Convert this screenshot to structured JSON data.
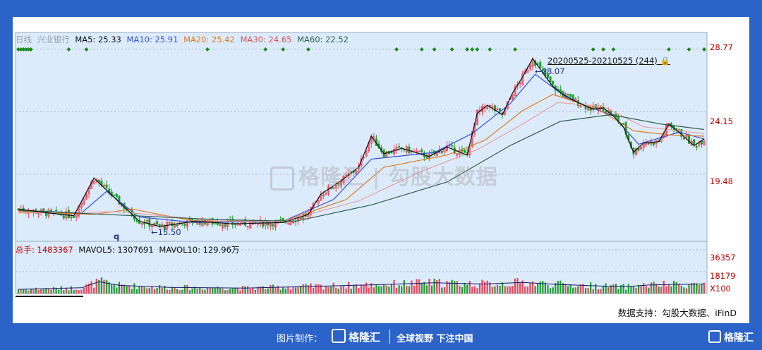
{
  "legend": {
    "period": "日线",
    "stock": "兴业银行",
    "ma5": "MA5: 25.33",
    "ma10": "MA10: 25.91",
    "ma20": "MA20: 25.42",
    "ma30": "MA30: 24.65",
    "ma60": "MA60: 22.52"
  },
  "volume_legend": {
    "total": "总手: 1483367",
    "mavol5": "MAVOL5: 1307691",
    "mavol10": "MAVOL10: 129.96万"
  },
  "axis": {
    "price_ticks": [
      "28.77",
      "24.15",
      "19.48"
    ],
    "volume_ticks": [
      "36357",
      "18179",
      "X100"
    ]
  },
  "annotations": {
    "range": "20200525-20210525 (244)",
    "peak": "28.07",
    "trough": "15.50",
    "q": "q"
  },
  "source": "数据支持：勾股大数据、iFinD",
  "watermark": "格隆汇 | 勾股大数据",
  "footer": {
    "credit": "图片制作：",
    "brand": "格隆汇",
    "slogan": "全球视野 下注中国",
    "corner": "格隆汇"
  },
  "colors": {
    "up": "#e8485a",
    "down": "#1f9e2e",
    "ma5": "#111111",
    "ma10": "#3a4ed8",
    "ma20": "#e07a1f",
    "ma30": "#e8a0a0",
    "ma60": "#2f5e4a",
    "signal": "#1a8a1a",
    "background": "#ffffff"
  },
  "chart_data": {
    "type": "line",
    "title": "兴业银行 日线",
    "ylim": [
      14.5,
      30.0
    ],
    "price_path": [
      [
        0,
        16.9
      ],
      [
        12,
        16.6
      ],
      [
        22,
        16.4
      ],
      [
        30,
        19.2
      ],
      [
        40,
        17.4
      ],
      [
        48,
        16.0
      ],
      [
        56,
        15.6
      ],
      [
        70,
        16.0
      ],
      [
        85,
        15.8
      ],
      [
        105,
        15.9
      ],
      [
        115,
        16.5
      ],
      [
        120,
        18.0
      ],
      [
        128,
        19.0
      ],
      [
        135,
        20.0
      ],
      [
        140,
        22.3
      ],
      [
        145,
        21.0
      ],
      [
        152,
        21.4
      ],
      [
        163,
        20.8
      ],
      [
        170,
        21.5
      ],
      [
        178,
        20.9
      ],
      [
        182,
        24.0
      ],
      [
        186,
        24.6
      ],
      [
        192,
        23.9
      ],
      [
        196,
        25.5
      ],
      [
        200,
        26.7
      ],
      [
        204,
        28.07
      ],
      [
        208,
        27.0
      ],
      [
        212,
        26.0
      ],
      [
        216,
        25.4
      ],
      [
        222,
        24.8
      ],
      [
        228,
        24.3
      ],
      [
        232,
        24.4
      ],
      [
        236,
        23.8
      ],
      [
        240,
        23.0
      ],
      [
        244,
        21.1
      ],
      [
        248,
        21.8
      ],
      [
        254,
        21.9
      ],
      [
        258,
        23.2
      ],
      [
        262,
        22.6
      ],
      [
        268,
        21.6
      ],
      [
        272,
        22.1
      ]
    ],
    "moving_averages": [
      {
        "name": "MA10",
        "points": [
          [
            0,
            16.8
          ],
          [
            25,
            16.6
          ],
          [
            35,
            18.2
          ],
          [
            48,
            16.3
          ],
          [
            70,
            15.9
          ],
          [
            105,
            16.0
          ],
          [
            125,
            17.6
          ],
          [
            140,
            20.6
          ],
          [
            165,
            21.1
          ],
          [
            180,
            22.5
          ],
          [
            195,
            24.7
          ],
          [
            205,
            26.9
          ],
          [
            218,
            25.1
          ],
          [
            236,
            23.8
          ],
          [
            246,
            21.7
          ],
          [
            262,
            22.6
          ],
          [
            272,
            22.1
          ]
        ]
      },
      {
        "name": "MA20",
        "points": [
          [
            0,
            16.7
          ],
          [
            30,
            16.5
          ],
          [
            45,
            16.9
          ],
          [
            70,
            16.0
          ],
          [
            105,
            16.0
          ],
          [
            130,
            17.6
          ],
          [
            145,
            20.0
          ],
          [
            170,
            20.9
          ],
          [
            185,
            22.0
          ],
          [
            200,
            24.2
          ],
          [
            212,
            25.4
          ],
          [
            230,
            24.3
          ],
          [
            244,
            22.7
          ],
          [
            258,
            22.4
          ],
          [
            272,
            22.3
          ]
        ]
      },
      {
        "name": "MA30",
        "points": [
          [
            0,
            16.6
          ],
          [
            40,
            16.7
          ],
          [
            80,
            16.0
          ],
          [
            105,
            16.0
          ],
          [
            135,
            17.5
          ],
          [
            160,
            19.7
          ],
          [
            182,
            21.3
          ],
          [
            200,
            23.2
          ],
          [
            214,
            24.8
          ],
          [
            232,
            24.5
          ],
          [
            248,
            23.0
          ],
          [
            272,
            22.5
          ]
        ]
      },
      {
        "name": "MA60",
        "points": [
          [
            0,
            16.8
          ],
          [
            80,
            16.1
          ],
          [
            110,
            16.0
          ],
          [
            140,
            17.2
          ],
          [
            170,
            18.9
          ],
          [
            195,
            21.6
          ],
          [
            215,
            23.4
          ],
          [
            235,
            23.9
          ],
          [
            255,
            23.2
          ],
          [
            272,
            22.8
          ]
        ]
      }
    ],
    "volume": {
      "ylim": [
        0,
        36357
      ],
      "ticks": [
        36357,
        18179
      ],
      "mavol_path": [
        [
          0,
          3500
        ],
        [
          25,
          4800
        ],
        [
          32,
          9800
        ],
        [
          40,
          6800
        ],
        [
          60,
          5100
        ],
        [
          90,
          4600
        ],
        [
          110,
          5600
        ],
        [
          140,
          7200
        ],
        [
          165,
          9000
        ],
        [
          185,
          7900
        ],
        [
          200,
          9200
        ],
        [
          215,
          7500
        ],
        [
          240,
          5600
        ],
        [
          250,
          7100
        ],
        [
          272,
          8000
        ]
      ]
    }
  }
}
